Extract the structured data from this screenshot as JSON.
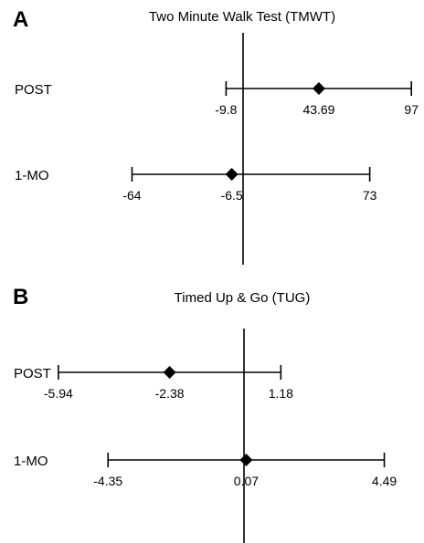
{
  "chart_data": [
    {
      "type": "forest",
      "panel_label": "A",
      "title": "Two Minute Walk Test (TMWT)",
      "reference_line": 0,
      "rows": [
        {
          "label": "POST",
          "estimate": 43.69,
          "lower": -9.8,
          "upper": 97,
          "estimate_label": "43.69",
          "lower_label": "-9.8",
          "upper_label": "97"
        },
        {
          "label": "1-MO",
          "estimate": -6.5,
          "lower": -64,
          "upper": 73,
          "estimate_label": "-6.5",
          "lower_label": "-64",
          "upper_label": "73"
        }
      ]
    },
    {
      "type": "forest",
      "panel_label": "B",
      "title": "Timed Up & Go (TUG)",
      "reference_line": 0,
      "rows": [
        {
          "label": "POST",
          "estimate": -2.38,
          "lower": -5.94,
          "upper": 1.18,
          "estimate_label": "-2.38",
          "lower_label": "-5.94",
          "upper_label": "1.18"
        },
        {
          "label": "1-MO",
          "estimate": 0.07,
          "lower": -4.35,
          "upper": 4.49,
          "estimate_label": "0.07",
          "lower_label": "-4.35",
          "upper_label": "4.49"
        }
      ]
    }
  ]
}
